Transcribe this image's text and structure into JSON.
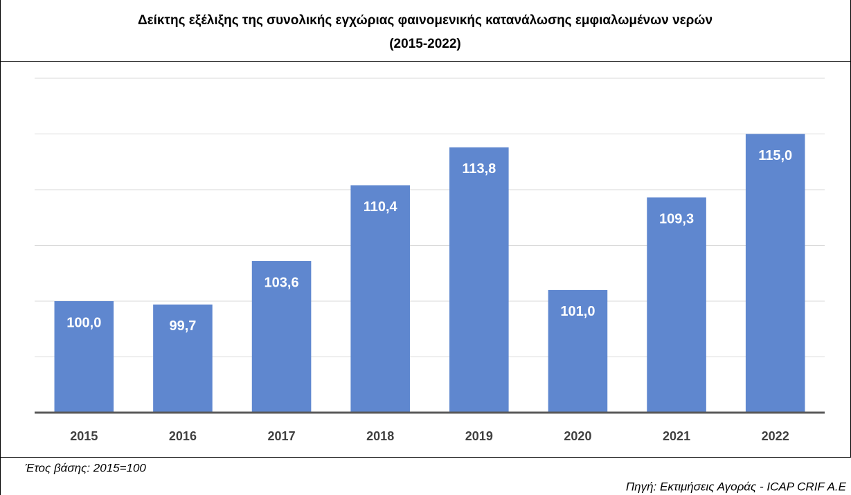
{
  "chart_data": {
    "type": "bar",
    "title": [
      "Δείκτης εξέλιξης της συνολικής εγχώριας φαινομενικής κατανάλωσης εμφιαλωμένων νερών",
      "(2015-2022)"
    ],
    "categories": [
      "2015",
      "2016",
      "2017",
      "2018",
      "2019",
      "2020",
      "2021",
      "2022"
    ],
    "values": [
      100.0,
      99.7,
      103.6,
      110.4,
      113.8,
      101.0,
      109.3,
      115.0
    ],
    "value_labels": [
      "100,0",
      "99,7",
      "103,6",
      "110,4",
      "113,8",
      "101,0",
      "109,3",
      "115,0"
    ],
    "color": "#5f87cf",
    "ylim": [
      90,
      120
    ],
    "yticks": [
      90,
      95,
      100,
      105,
      110,
      115,
      120
    ],
    "grid": true,
    "note": "Έτος βάσης: 2015=100",
    "source": "Πηγή: Εκτιμήσεις Αγοράς - ICAP CRIF A.E"
  }
}
